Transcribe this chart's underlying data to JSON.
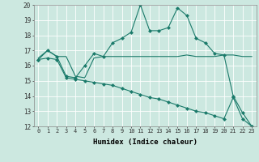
{
  "xlabel": "Humidex (Indice chaleur)",
  "xlim": [
    -0.5,
    23.5
  ],
  "ylim": [
    12,
    20
  ],
  "xticks": [
    0,
    1,
    2,
    3,
    4,
    5,
    6,
    7,
    8,
    9,
    10,
    11,
    12,
    13,
    14,
    15,
    16,
    17,
    18,
    19,
    20,
    21,
    22,
    23
  ],
  "yticks": [
    12,
    13,
    14,
    15,
    16,
    17,
    18,
    19,
    20
  ],
  "bg_color": "#cce8e0",
  "line_color": "#1a7a6a",
  "grid_color": "#ffffff",
  "line1_x": [
    0,
    1,
    2,
    3,
    4,
    5,
    6,
    7,
    8,
    9,
    10,
    11,
    12,
    13,
    14,
    15,
    16,
    17,
    18,
    19,
    20,
    21,
    22,
    23
  ],
  "line1_y": [
    16.4,
    17.0,
    16.6,
    15.3,
    15.2,
    16.0,
    16.8,
    16.6,
    17.5,
    17.8,
    18.2,
    20.0,
    18.3,
    18.3,
    18.5,
    19.8,
    19.3,
    17.8,
    17.5,
    16.8,
    16.7,
    14.0,
    12.9,
    12.0
  ],
  "line2_x": [
    0,
    1,
    2,
    3,
    4,
    5,
    6,
    7,
    8,
    9,
    10,
    11,
    12,
    13,
    14,
    15,
    16,
    17,
    18,
    19,
    20,
    21,
    22,
    23
  ],
  "line2_y": [
    16.5,
    17.0,
    16.6,
    16.6,
    15.3,
    15.2,
    16.5,
    16.6,
    16.6,
    16.6,
    16.6,
    16.6,
    16.6,
    16.6,
    16.6,
    16.6,
    16.7,
    16.6,
    16.6,
    16.6,
    16.7,
    16.7,
    16.6,
    16.6
  ],
  "line3_x": [
    0,
    1,
    2,
    3,
    4,
    5,
    6,
    7,
    8,
    9,
    10,
    11,
    12,
    13,
    14,
    15,
    16,
    17,
    18,
    19,
    20,
    21,
    22,
    23
  ],
  "line3_y": [
    16.4,
    16.5,
    16.4,
    15.2,
    15.1,
    15.0,
    14.9,
    14.8,
    14.7,
    14.5,
    14.3,
    14.1,
    13.9,
    13.8,
    13.6,
    13.4,
    13.2,
    13.0,
    12.9,
    12.7,
    12.5,
    13.9,
    12.5,
    12.0
  ]
}
